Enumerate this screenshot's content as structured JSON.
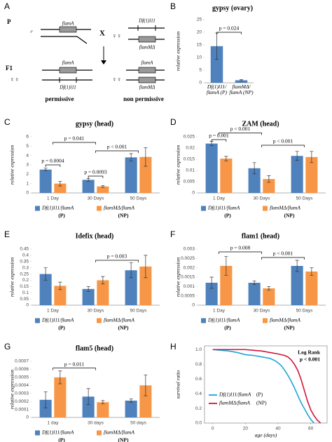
{
  "diagram": {
    "panel": "A",
    "parents_label": "P",
    "f1_label": "F1",
    "cross": "X",
    "p_left_sex": "♂",
    "p_left_top": "flamA",
    "p_right_sex": "♀♀",
    "p_right_top": "Df(1)l11",
    "p_right_bottom": "flamMΔ",
    "f1_left_sex": "♀♀",
    "f1_left_top": "flamA",
    "f1_left_bottom": "Df(1)l11",
    "f1_left_caption": "permissive",
    "f1_right_sex": "♀♀",
    "f1_right_top": "flamA",
    "f1_right_bottom": "flamMΔ",
    "f1_right_caption": "non permissive"
  },
  "chart_data": [
    {
      "panel": "B",
      "type": "bar",
      "title": "gypsy (ovary)",
      "y_label": "relative expression",
      "categories": [
        "Df(1)l11/ flamA (P)",
        "flamMΔ/ flamA (NP)"
      ],
      "values": [
        14.5,
        1.0
      ],
      "errors": [
        5.2,
        0.25
      ],
      "color": "#4f81bd",
      "ylim": [
        0,
        25
      ],
      "yticks": [
        0,
        5,
        10,
        15,
        20,
        25
      ],
      "annotations": [
        "p = 0.024"
      ]
    },
    {
      "panel": "C",
      "type": "grouped_bar",
      "title": "gypsy (head)",
      "y_label": "relative expression",
      "categories": [
        "1 Day",
        "30 Days",
        "50 Days"
      ],
      "series": [
        {
          "name": "Df(1)l11/flamA",
          "group": "(P)",
          "color": "#4f81bd",
          "values": [
            2.5,
            1.4,
            3.8
          ],
          "errors": [
            0.15,
            0.15,
            0.4
          ]
        },
        {
          "name": "flamMΔ/flamA",
          "group": "(NP)",
          "color": "#f79646",
          "values": [
            1.0,
            0.7,
            3.85
          ],
          "errors": [
            0.25,
            0.1,
            1.0
          ]
        }
      ],
      "ylim": [
        0,
        6
      ],
      "yticks": [
        0,
        1,
        2,
        3,
        4,
        5,
        6
      ],
      "annotations": [
        "p = 0.0004",
        "p = 0.0093",
        "p = 0.041",
        "p < 0.001"
      ]
    },
    {
      "panel": "D",
      "type": "grouped_bar",
      "title": "ZAM (head)",
      "y_label": "relative expression",
      "categories": [
        "1 Day",
        "30 Days",
        "50 Days"
      ],
      "series": [
        {
          "name": "Df(1)l11/flamA",
          "group": "(P)",
          "color": "#4f81bd",
          "values": [
            0.022,
            0.011,
            0.0165
          ],
          "errors": [
            0.001,
            0.0025,
            0.002
          ]
        },
        {
          "name": "flamMΔ/flamA",
          "group": "(NP)",
          "color": "#f79646",
          "values": [
            0.0153,
            0.0062,
            0.016
          ],
          "errors": [
            0.001,
            0.0015,
            0.0025
          ]
        }
      ],
      "ylim": [
        0,
        0.025
      ],
      "yticks": [
        0,
        0.005,
        0.01,
        0.015,
        0.02,
        0.025
      ],
      "annotations": [
        "p = 0.001",
        "p < 0.001",
        "p < 0.001"
      ]
    },
    {
      "panel": "E",
      "type": "grouped_bar",
      "title": "Idefix (head)",
      "y_label": "relative expression",
      "categories": [
        "1 Day",
        "30 Days",
        "50 Days"
      ],
      "series": [
        {
          "name": "Df(1)l11/flamA",
          "group": "(P)",
          "color": "#4f81bd",
          "values": [
            0.25,
            0.13,
            0.28
          ],
          "errors": [
            0.05,
            0.02,
            0.06
          ]
        },
        {
          "name": "flamMΔ/flamA",
          "group": "(NP)",
          "color": "#f79646",
          "values": [
            0.155,
            0.2,
            0.31
          ],
          "errors": [
            0.03,
            0.03,
            0.09
          ]
        }
      ],
      "ylim": [
        0,
        0.45
      ],
      "yticks": [
        0,
        0.05,
        0.1,
        0.15,
        0.2,
        0.25,
        0.3,
        0.35,
        0.4,
        0.45
      ],
      "annotations": [
        "p = 0.003"
      ]
    },
    {
      "panel": "F",
      "type": "grouped_bar",
      "title": "flam1 (head)",
      "y_label": "relative expression",
      "categories": [
        "1 Day",
        "30 Days",
        "50 Days"
      ],
      "series": [
        {
          "name": "Df(1)l11/flamA",
          "group": "(P)",
          "color": "#4f81bd",
          "values": [
            0.0012,
            0.0012,
            0.0021
          ],
          "errors": [
            0.0003,
            0.0001,
            0.0003
          ]
        },
        {
          "name": "flamMΔ/flamA",
          "group": "(NP)",
          "color": "#f79646",
          "values": [
            0.0021,
            0.0009,
            0.0018
          ],
          "errors": [
            0.0005,
            0.0001,
            0.0002
          ]
        }
      ],
      "ylim": [
        0,
        0.003
      ],
      "yticks": [
        0,
        0.0005,
        0.001,
        0.0015,
        0.002,
        0.0025,
        0.003
      ],
      "annotations": [
        "p = 0.008",
        "p < 0.001"
      ]
    },
    {
      "panel": "G",
      "type": "grouped_bar",
      "title": "flam5 (head)",
      "y_label": "relative expression",
      "categories": [
        "1 day",
        "30 days",
        "50 days"
      ],
      "series": [
        {
          "name": "Df(1)l11/flamA",
          "group": "(P)",
          "color": "#4f81bd",
          "values": [
            0.00022,
            0.00026,
            0.00021
          ],
          "errors": [
            0.0001,
            0.0001,
            2e-05
          ]
        },
        {
          "name": "flamMΔ/flamA",
          "group": "(NP)",
          "color": "#f79646",
          "values": [
            0.0005,
            0.00019,
            0.0004
          ],
          "errors": [
            8e-05,
            2e-05,
            0.00013
          ]
        }
      ],
      "ylim": [
        0,
        0.0007
      ],
      "yticks": [
        0,
        0.0001,
        0.0002,
        0.0003,
        0.0004,
        0.0005,
        0.0006,
        0.0007
      ],
      "annotations": [
        "p = 0.011"
      ]
    },
    {
      "panel": "H",
      "type": "line",
      "x_label": "age (days)",
      "y_label": "survival ratio",
      "annotations": [
        "Log Rank",
        "p < 0.001"
      ],
      "series": [
        {
          "name": "Df(1)l11/flamA",
          "group": "(P)",
          "color": "#1ca3dc",
          "x": [
            0,
            10,
            15,
            20,
            25,
            30,
            35,
            38,
            40,
            42,
            44,
            46,
            48,
            50,
            52,
            54,
            56,
            58,
            60,
            62
          ],
          "values": [
            1,
            0.98,
            0.96,
            0.93,
            0.92,
            0.9,
            0.88,
            0.85,
            0.82,
            0.78,
            0.72,
            0.65,
            0.57,
            0.48,
            0.38,
            0.28,
            0.2,
            0.12,
            0.05,
            0
          ]
        },
        {
          "name": "flamMΔ/flamA",
          "group": "(NP)",
          "color": "#d2143a",
          "x": [
            0,
            20,
            25,
            30,
            35,
            40,
            44,
            46,
            48,
            50,
            52,
            54,
            56,
            58,
            60,
            62,
            64,
            66
          ],
          "values": [
            1,
            1,
            0.99,
            0.98,
            0.96,
            0.94,
            0.92,
            0.9,
            0.86,
            0.8,
            0.72,
            0.6,
            0.45,
            0.3,
            0.18,
            0.1,
            0.04,
            0
          ]
        }
      ],
      "xlim": [
        -5,
        70
      ],
      "xticks": [
        0,
        20,
        40,
        60
      ],
      "ylim": [
        0,
        1.05
      ],
      "yticks": [
        {
          "value": 0,
          "label": "0.0"
        },
        {
          "value": 0.2,
          "label": "0.2"
        },
        {
          "value": 0.4,
          "label": "0.4"
        },
        {
          "value": 0.6,
          "label": "0.6"
        },
        {
          "value": 0.8,
          "label": "0.8"
        },
        {
          "value": 1,
          "label": "1.0"
        }
      ]
    }
  ]
}
